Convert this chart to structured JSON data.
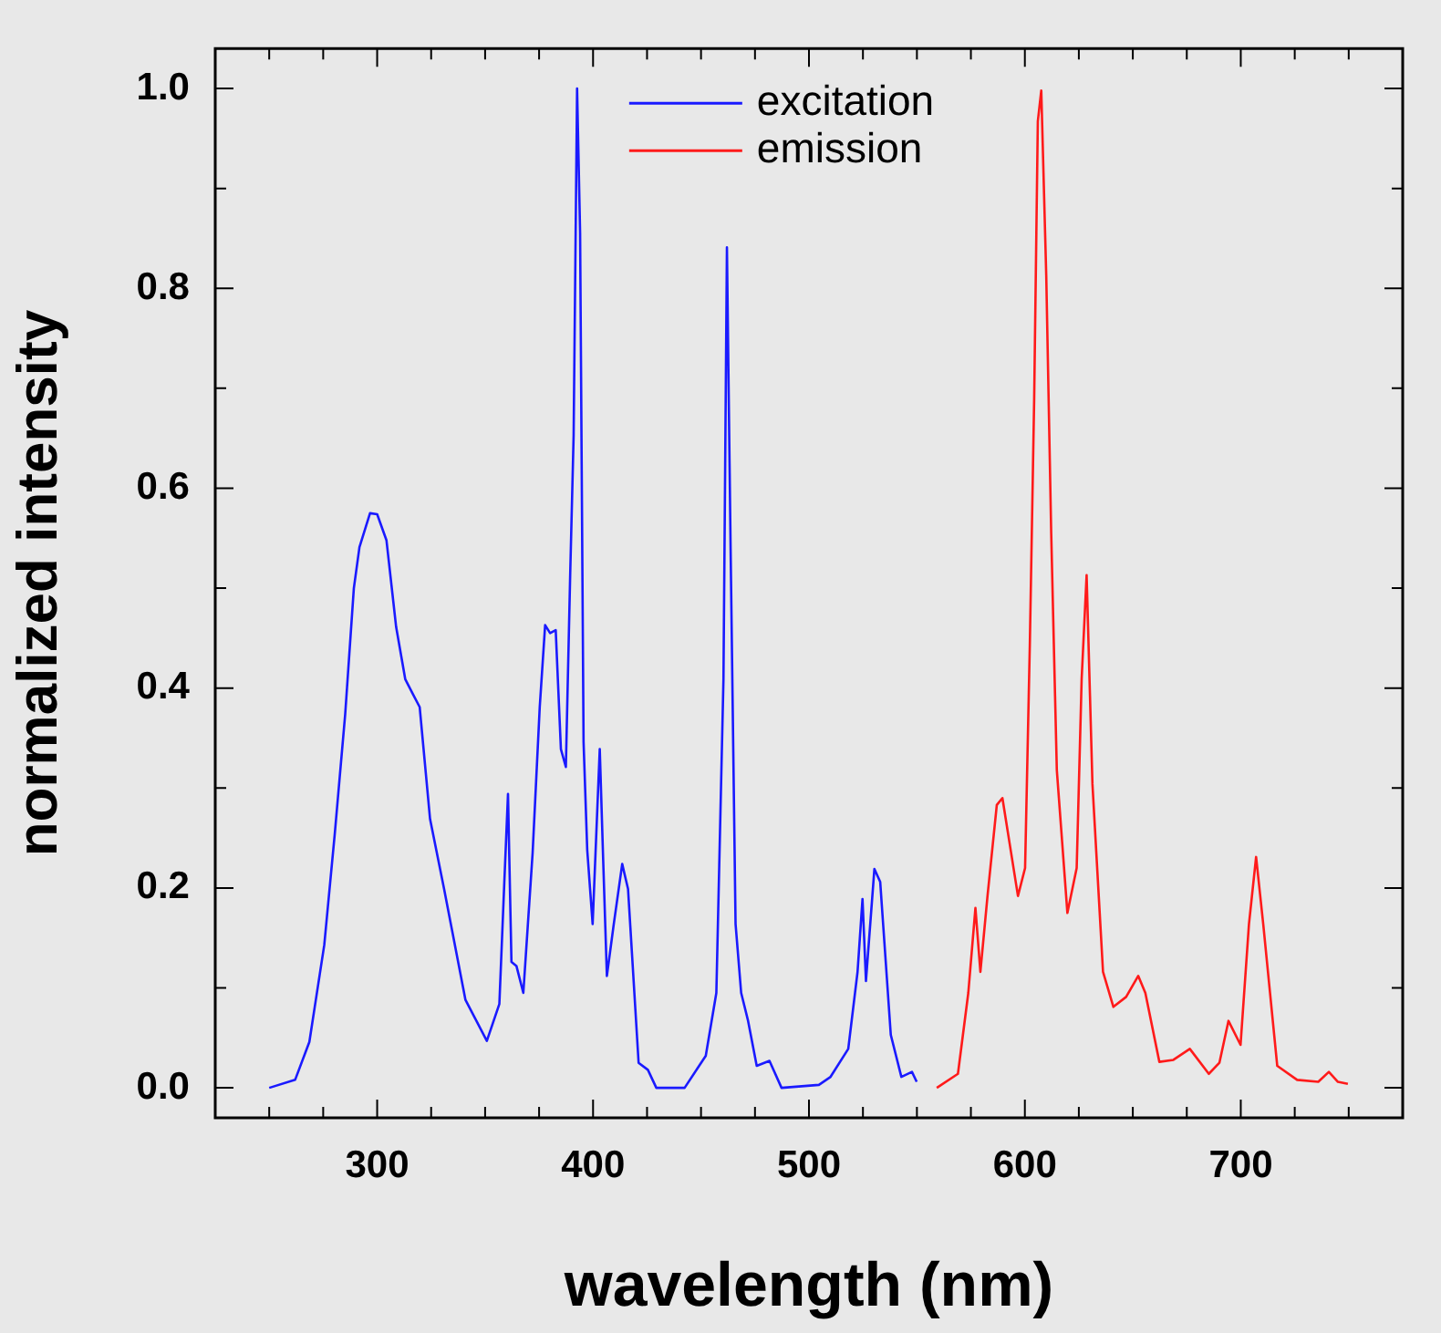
{
  "chart_data": {
    "type": "line",
    "xlabel": "wavelength (nm)",
    "ylabel": "normalized intensity",
    "xlim": [
      225,
      775
    ],
    "ylim": [
      -0.03,
      1.04
    ],
    "xticks": [
      {
        "value": 250,
        "label": null
      },
      {
        "value": 275,
        "label": null
      },
      300,
      {
        "value": 325,
        "label": null
      },
      {
        "value": 350,
        "label": null
      },
      {
        "value": 375,
        "label": null
      },
      400,
      {
        "value": 425,
        "label": null
      },
      {
        "value": 450,
        "label": null
      },
      {
        "value": 475,
        "label": null
      },
      500,
      {
        "value": 525,
        "label": null
      },
      {
        "value": 550,
        "label": null
      },
      {
        "value": 575,
        "label": null
      },
      600,
      {
        "value": 625,
        "label": null
      },
      {
        "value": 650,
        "label": null
      },
      {
        "value": 675,
        "label": null
      },
      700,
      {
        "value": 725,
        "label": null
      },
      {
        "value": 750,
        "label": null
      }
    ],
    "yticks": [
      {
        "value": 0,
        "label": "0.0"
      },
      {
        "value": 0.1,
        "label": null
      },
      0.2,
      {
        "value": 0.3,
        "label": null
      },
      0.4,
      {
        "value": 0.5,
        "label": null
      },
      0.6,
      {
        "value": 0.7,
        "label": null
      },
      0.8,
      {
        "value": 0.9,
        "label": null
      },
      {
        "value": 1,
        "label": "1.0"
      }
    ],
    "grid": false,
    "legend": "top",
    "marker": "none",
    "line_style": "solid",
    "series": [
      {
        "name": "excitation",
        "color": "#1a1aff",
        "x": [
          250,
          262,
          268.6,
          275.5,
          280.4,
          285.2,
          289.2,
          291.8,
          296.7,
          300,
          304.3,
          308.8,
          313,
          316.3,
          319.7,
          324.5,
          331,
          340.9,
          350.8,
          356.6,
          358.9,
          360.6,
          362.2,
          364.5,
          367.7,
          372,
          375.3,
          377.8,
          380.1,
          382.7,
          385.1,
          387.4,
          389.4,
          391,
          392.6,
          394,
          395.6,
          397.3,
          399.8,
          403.1,
          404.7,
          406.4,
          409.6,
          413.5,
          416.2,
          421.1,
          425.4,
          429.3,
          442.4,
          452.2,
          457.1,
          460.4,
          462,
          463.7,
          466,
          468.6,
          471.8,
          475.8,
          481.7,
          487.3,
          504.6,
          510,
          518.2,
          522.5,
          524.8,
          526.4,
          530.3,
          533,
          537.9,
          542.8,
          547.7,
          549.9
        ],
        "values": [
          0,
          0.008,
          0.046,
          0.143,
          0.255,
          0.374,
          0.5,
          0.541,
          0.575,
          0.574,
          0.548,
          0.461,
          0.409,
          0.395,
          0.381,
          0.269,
          0.199,
          0.088,
          0.047,
          0.084,
          0.206,
          0.294,
          0.126,
          0.122,
          0.095,
          0.235,
          0.381,
          0.463,
          0.455,
          0.458,
          0.339,
          0.321,
          0.513,
          0.653,
          1.0,
          0.855,
          0.346,
          0.238,
          0.164,
          0.339,
          0.227,
          0.112,
          0.164,
          0.224,
          0.199,
          0.025,
          0.018,
          0,
          0,
          0.032,
          0.095,
          0.409,
          0.841,
          0.541,
          0.164,
          0.095,
          0.067,
          0.022,
          0.027,
          0,
          0.003,
          0.011,
          0.039,
          0.116,
          0.189,
          0.107,
          0.219,
          0.206,
          0.053,
          0.011,
          0.016,
          0.006
        ]
      },
      {
        "name": "emission",
        "color": "#ff1a1a",
        "x": [
          559.2,
          569,
          573.8,
          577.1,
          579.4,
          582.7,
          587,
          589.6,
          596.8,
          600.1,
          602.3,
          604.3,
          606,
          607.6,
          609.9,
          612.2,
          614.8,
          619.7,
          624,
          626.3,
          628.6,
          631.3,
          636.2,
          641,
          646.9,
          652.5,
          655.8,
          662.3,
          668.8,
          676.4,
          685.2,
          690.1,
          694.3,
          699.9,
          703.8,
          707.1,
          710.4,
          716.9,
          726.1,
          735.9,
          740.8,
          745,
          749.6
        ],
        "values": [
          0,
          0.014,
          0.095,
          0.18,
          0.116,
          0.192,
          0.283,
          0.29,
          0.192,
          0.22,
          0.444,
          0.688,
          0.967,
          0.998,
          0.813,
          0.555,
          0.318,
          0.175,
          0.22,
          0.409,
          0.513,
          0.304,
          0.116,
          0.081,
          0.091,
          0.112,
          0.095,
          0.026,
          0.028,
          0.039,
          0.014,
          0.025,
          0.067,
          0.043,
          0.164,
          0.231,
          0.164,
          0.022,
          0.008,
          0.006,
          0.016,
          0.006,
          0.004
        ]
      }
    ]
  }
}
